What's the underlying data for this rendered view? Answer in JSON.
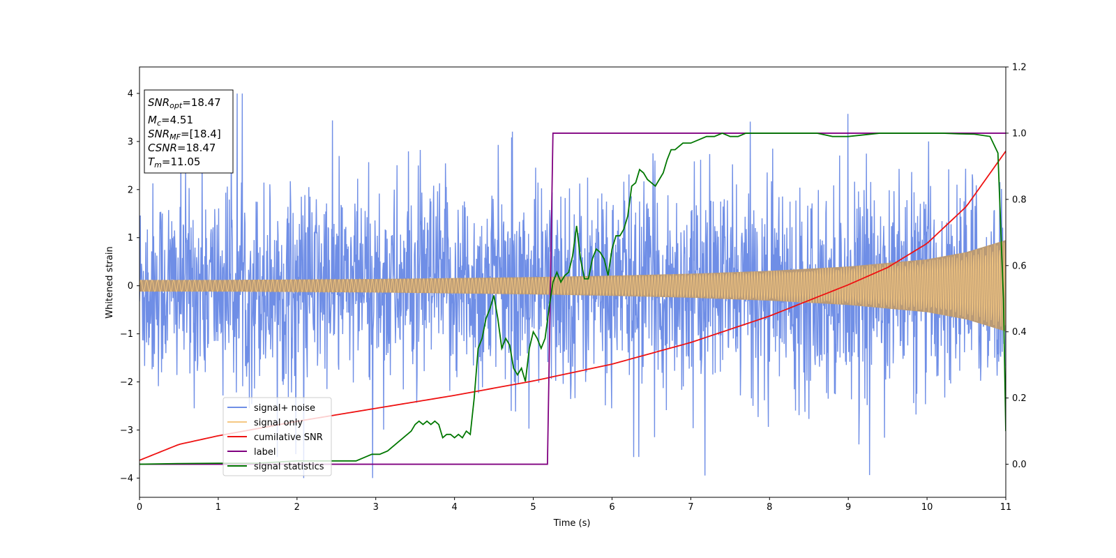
{
  "chart_data": {
    "type": "line",
    "title": "",
    "xlabel": "Time (s)",
    "ylabel": "Whitened strain",
    "y2label": "",
    "xlim": [
      0,
      11
    ],
    "ylim": [
      -4.4,
      4.55
    ],
    "y2lim": [
      -0.1,
      1.2
    ],
    "xticks": [
      "0",
      "1",
      "2",
      "3",
      "4",
      "5",
      "6",
      "7",
      "8",
      "9",
      "10",
      "11"
    ],
    "yticks": [
      "4",
      "3",
      "2",
      "1",
      "0",
      "−1",
      "−2",
      "−3",
      "−4"
    ],
    "y2ticks": [
      "1.2",
      "1.0",
      "0.8",
      "0.6",
      "0.4",
      "0.2",
      "0.0"
    ],
    "grid": false,
    "legend_location": "lower-left",
    "legend": [
      "signal+ noise",
      "signal only",
      "cumilative SNR",
      "label",
      "signal statistics"
    ],
    "colors": {
      "noise": "#6f8ee6",
      "signal": "#f5c882",
      "signal_overlap": "#b99a76",
      "snr": "#ee1111",
      "label": "#800080",
      "stats": "#007700"
    },
    "annotation": {
      "snr_opt": {
        "base": "SNR",
        "sub": "opt",
        "value": "=18.47"
      },
      "mc": {
        "base": "M",
        "sub": "c",
        "value": "=4.51"
      },
      "snr_mf": {
        "base": "SNR",
        "sub": "MF",
        "value": "=[18.4]"
      },
      "csnr": {
        "base": "CSNR",
        "value": "=18.47"
      },
      "tm": {
        "base": "T",
        "sub": "m",
        "value": "=11.05"
      }
    },
    "series": [
      {
        "name": "signal+ noise",
        "axis": "left",
        "description": "dense whitened noise, roughly +/-3.2 with spikes to +/-4",
        "envelope_max": 4.15,
        "envelope_min": -4.0
      },
      {
        "name": "signal only",
        "axis": "left",
        "amplitude_x": [
          0,
          1,
          2,
          3,
          4,
          5,
          6,
          7,
          8,
          9,
          10,
          10.5,
          11
        ],
        "amplitude": [
          0.12,
          0.12,
          0.13,
          0.14,
          0.16,
          0.18,
          0.21,
          0.25,
          0.31,
          0.4,
          0.55,
          0.7,
          0.95
        ]
      },
      {
        "name": "cumilative SNR",
        "axis": "left",
        "x": [
          0,
          0.5,
          1,
          2,
          3,
          4,
          5,
          6,
          7,
          8,
          9,
          9.5,
          10,
          10.5,
          11
        ],
        "y": [
          -3.63,
          -3.3,
          -3.12,
          -2.82,
          -2.55,
          -2.28,
          -1.98,
          -1.63,
          -1.18,
          -0.63,
          0.02,
          0.38,
          0.88,
          1.65,
          2.8
        ]
      },
      {
        "name": "label",
        "axis": "right",
        "x": [
          0,
          5.18,
          5.25,
          11
        ],
        "y": [
          0.0,
          0.0,
          1.0,
          1.0
        ]
      },
      {
        "name": "signal statistics",
        "axis": "right",
        "x": [
          0,
          0.5,
          1,
          1.5,
          2,
          2.5,
          2.75,
          2.85,
          2.95,
          3.05,
          3.15,
          3.25,
          3.35,
          3.45,
          3.5,
          3.55,
          3.6,
          3.65,
          3.7,
          3.75,
          3.8,
          3.85,
          3.9,
          3.95,
          4.0,
          4.05,
          4.1,
          4.15,
          4.2,
          4.25,
          4.3,
          4.35,
          4.4,
          4.45,
          4.5,
          4.55,
          4.6,
          4.65,
          4.7,
          4.75,
          4.8,
          4.85,
          4.9,
          4.95,
          5.0,
          5.05,
          5.1,
          5.15,
          5.2,
          5.25,
          5.3,
          5.35,
          5.4,
          5.45,
          5.5,
          5.55,
          5.6,
          5.65,
          5.7,
          5.75,
          5.8,
          5.85,
          5.9,
          5.95,
          6.0,
          6.05,
          6.1,
          6.15,
          6.2,
          6.25,
          6.3,
          6.35,
          6.4,
          6.45,
          6.5,
          6.55,
          6.6,
          6.65,
          6.7,
          6.75,
          6.8,
          6.85,
          6.9,
          7.0,
          7.1,
          7.2,
          7.3,
          7.4,
          7.5,
          7.6,
          7.7,
          7.8,
          7.9,
          8.0,
          8.2,
          8.4,
          8.6,
          8.8,
          9.0,
          9.2,
          9.4,
          9.6,
          9.8,
          10.0,
          10.2,
          10.4,
          10.6,
          10.8,
          10.9,
          10.97,
          11.0
        ],
        "y": [
          0.0,
          0.002,
          0.003,
          0.003,
          0.01,
          0.01,
          0.01,
          0.02,
          0.03,
          0.03,
          0.04,
          0.06,
          0.08,
          0.1,
          0.12,
          0.13,
          0.12,
          0.13,
          0.12,
          0.13,
          0.12,
          0.08,
          0.09,
          0.09,
          0.08,
          0.09,
          0.08,
          0.1,
          0.09,
          0.2,
          0.35,
          0.38,
          0.44,
          0.47,
          0.51,
          0.44,
          0.35,
          0.38,
          0.36,
          0.29,
          0.27,
          0.29,
          0.25,
          0.35,
          0.4,
          0.38,
          0.35,
          0.38,
          0.47,
          0.55,
          0.58,
          0.55,
          0.57,
          0.58,
          0.63,
          0.72,
          0.62,
          0.56,
          0.56,
          0.62,
          0.65,
          0.64,
          0.62,
          0.57,
          0.65,
          0.69,
          0.69,
          0.71,
          0.75,
          0.84,
          0.85,
          0.89,
          0.88,
          0.86,
          0.85,
          0.84,
          0.86,
          0.88,
          0.92,
          0.95,
          0.95,
          0.96,
          0.97,
          0.97,
          0.98,
          0.99,
          0.99,
          1.0,
          0.99,
          0.99,
          1.0,
          1.0,
          1.0,
          1.0,
          1.0,
          1.0,
          1.0,
          0.99,
          0.99,
          0.995,
          1.0,
          1.0,
          1.0,
          1.0,
          1.0,
          0.998,
          0.997,
          0.99,
          0.94,
          0.5,
          0.1
        ]
      }
    ]
  }
}
